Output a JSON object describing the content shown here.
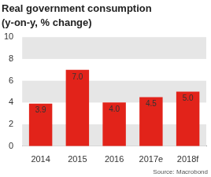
{
  "chart_data": {
    "type": "bar",
    "title": "Real government consumption",
    "subtitle": "(y-on-y, % change)",
    "categories": [
      "2014",
      "2015",
      "2016",
      "2017e",
      "2018f"
    ],
    "values": [
      3.9,
      7.0,
      4.0,
      4.5,
      5.0
    ],
    "value_labels": [
      "3.9",
      "7.0",
      "4.0",
      "4.5",
      "5.0"
    ],
    "color": "#e2231a",
    "ylim": [
      0,
      10
    ],
    "yticks": [
      0,
      2,
      4,
      6,
      8,
      10
    ],
    "grid": true,
    "data_labels": true,
    "annotations": [
      "Source: Macrobond"
    ]
  }
}
